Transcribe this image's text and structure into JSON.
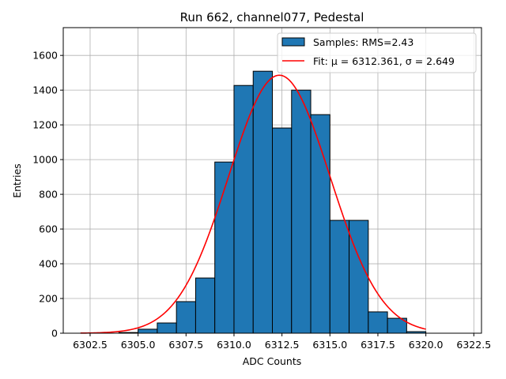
{
  "chart_data": {
    "type": "bar",
    "title": "Run 662, channel077, Pedestal",
    "xlabel": "ADC Counts",
    "ylabel": "Entries",
    "xlim": [
      6301.1,
      6322.9
    ],
    "ylim": [
      0,
      1760
    ],
    "grid": true,
    "legend_placement": "top-right",
    "xticks": [
      6302.5,
      6305.0,
      6307.5,
      6310.0,
      6312.5,
      6315.0,
      6317.5,
      6320.0,
      6322.5
    ],
    "xtick_labels": [
      "6302.5",
      "6305.0",
      "6307.5",
      "6310.0",
      "6312.5",
      "6315.0",
      "6317.5",
      "6320.0",
      "6322.5"
    ],
    "yticks": [
      0,
      200,
      400,
      600,
      800,
      1000,
      1200,
      1400,
      1600
    ],
    "ytick_labels": [
      "0",
      "200",
      "400",
      "600",
      "800",
      "1000",
      "1200",
      "1400",
      "1600"
    ],
    "bin_edges": [
      6304,
      6305,
      6306,
      6307,
      6308,
      6309,
      6310,
      6311,
      6312,
      6313,
      6314,
      6315,
      6316,
      6317,
      6318,
      6319,
      6320
    ],
    "values": [
      4,
      23,
      59,
      182,
      318,
      986,
      1427,
      1509,
      1182,
      1400,
      1259,
      650,
      650,
      123,
      86,
      9
    ],
    "bar_color": "#1f77b4",
    "fit": {
      "mu": 6312.361,
      "sigma": 2.649,
      "x_range": [
        6302.0,
        6320.0
      ],
      "color": "#ff0000"
    },
    "legend": [
      {
        "label": "Samples: RMS=2.43",
        "kind": "patch",
        "color": "#1f77b4"
      },
      {
        "label": "Fit: μ = 6312.361, σ = 2.649",
        "kind": "line",
        "color": "#ff0000"
      }
    ]
  }
}
